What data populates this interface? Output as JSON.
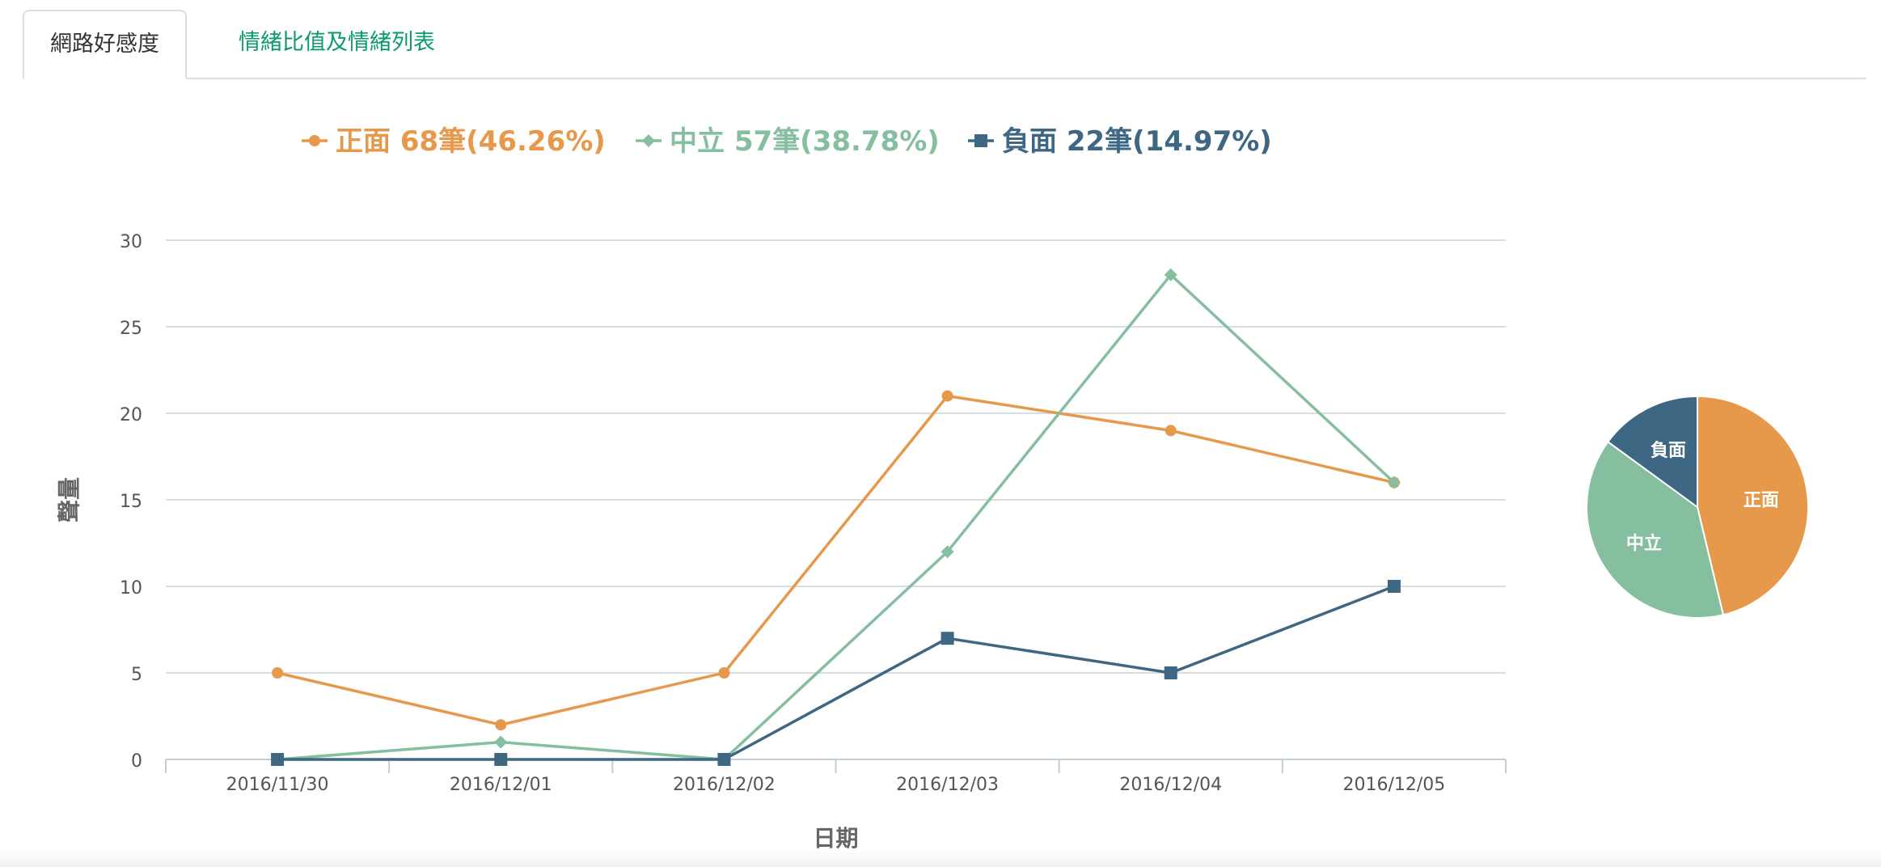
{
  "tabs": [
    {
      "label": "網路好感度",
      "active": true
    },
    {
      "label": "情緒比值及情緒列表",
      "active": false
    }
  ],
  "colors": {
    "positive": "#e6994b",
    "neutral": "#86bea0",
    "negative": "#3e6783",
    "grid": "#d8dde2",
    "axis": "#c0ced9"
  },
  "chart_data": [
    {
      "type": "line",
      "xlabel": "日期",
      "ylabel": "聲量",
      "ylim": [
        0,
        30
      ],
      "yticks": [
        0,
        5,
        10,
        15,
        20,
        25,
        30
      ],
      "grid": true,
      "legend_placement": "top",
      "categories": [
        "2016/11/30",
        "2016/12/01",
        "2016/12/02",
        "2016/12/03",
        "2016/12/04",
        "2016/12/05"
      ],
      "series": [
        {
          "name": "正面 68筆(46.26%)",
          "key": "positive",
          "marker": "circle",
          "values": [
            5,
            2,
            5,
            21,
            19,
            16
          ]
        },
        {
          "name": "中立 57筆(38.78%)",
          "key": "neutral",
          "marker": "diamond",
          "values": [
            0,
            1,
            0,
            12,
            28,
            16
          ]
        },
        {
          "name": "負面 22筆(14.97%)",
          "key": "negative",
          "marker": "square",
          "values": [
            0,
            0,
            0,
            7,
            5,
            10
          ]
        }
      ]
    },
    {
      "type": "pie",
      "slices": [
        {
          "label": "正面",
          "key": "positive",
          "value": 68
        },
        {
          "label": "中立",
          "key": "neutral",
          "value": 57
        },
        {
          "label": "負面",
          "key": "negative",
          "value": 22
        }
      ]
    }
  ]
}
